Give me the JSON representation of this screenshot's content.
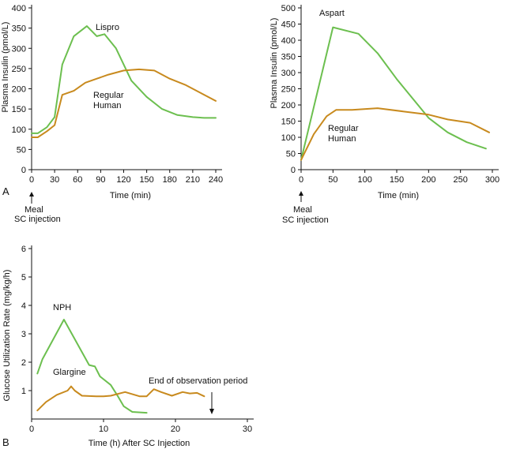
{
  "chart_data": [
    {
      "type": "line",
      "panel": "A-left",
      "title": "",
      "xlabel": "Time (min)",
      "ylabel": "Plasma Insulin (pmol/L)",
      "xlim": [
        0,
        240
      ],
      "ylim": [
        0,
        400
      ],
      "xticks": [
        0,
        30,
        60,
        90,
        120,
        150,
        180,
        210,
        240
      ],
      "yticks": [
        0,
        50,
        100,
        150,
        200,
        250,
        300,
        350,
        400
      ],
      "series": [
        {
          "name": "Lispro",
          "color": "#6cbf4f",
          "x": [
            0,
            8,
            20,
            30,
            40,
            55,
            72,
            85,
            95,
            110,
            130,
            150,
            170,
            190,
            210,
            225,
            240
          ],
          "y": [
            90,
            90,
            105,
            130,
            260,
            330,
            355,
            330,
            335,
            300,
            220,
            180,
            150,
            135,
            130,
            128,
            128
          ]
        },
        {
          "name": "Regular Human",
          "color": "#c88a1e",
          "x": [
            0,
            8,
            20,
            30,
            40,
            55,
            70,
            85,
            100,
            120,
            140,
            160,
            180,
            200,
            220,
            240
          ],
          "y": [
            80,
            80,
            95,
            110,
            185,
            195,
            215,
            225,
            235,
            245,
            248,
            245,
            225,
            210,
            190,
            170
          ]
        }
      ],
      "annotations": [
        "Lispro",
        "Regular",
        "Human",
        "Meal",
        "SC injection",
        "A"
      ]
    },
    {
      "type": "line",
      "panel": "A-right",
      "title": "",
      "xlabel": "Time (min)",
      "ylabel": "Plasma Insulin (pmol/L)",
      "xlim": [
        0,
        300
      ],
      "ylim": [
        0,
        500
      ],
      "xticks": [
        0,
        50,
        100,
        150,
        200,
        250,
        300
      ],
      "yticks": [
        0,
        50,
        100,
        150,
        200,
        250,
        300,
        350,
        400,
        450,
        500
      ],
      "series": [
        {
          "name": "Aspart",
          "color": "#6cbf4f",
          "x": [
            0,
            50,
            90,
            120,
            150,
            200,
            230,
            260,
            290
          ],
          "y": [
            30,
            440,
            420,
            360,
            280,
            160,
            115,
            85,
            65
          ]
        },
        {
          "name": "Regular Human",
          "color": "#c88a1e",
          "x": [
            0,
            20,
            40,
            55,
            80,
            120,
            160,
            200,
            230,
            265,
            295
          ],
          "y": [
            30,
            110,
            165,
            185,
            185,
            190,
            180,
            170,
            155,
            145,
            115
          ]
        }
      ],
      "annotations": [
        "Aspart",
        "Regular",
        "Human",
        "Meal",
        "SC injection"
      ]
    },
    {
      "type": "line",
      "panel": "B",
      "title": "",
      "xlabel": "Time (h) After SC Injection",
      "ylabel": "Glucose Utilization Rate (mg/kg/h)",
      "xlim": [
        0,
        30
      ],
      "ylim": [
        0,
        6
      ],
      "xticks": [
        0,
        10,
        20,
        30
      ],
      "yticks": [
        1,
        2,
        3,
        4,
        5,
        6
      ],
      "series": [
        {
          "name": "NPH",
          "color": "#6cbf4f",
          "x": [
            0.8,
            1.5,
            4.5,
            8,
            8.8,
            9.5,
            11,
            12,
            12.8,
            14,
            16
          ],
          "y": [
            1.6,
            2.1,
            3.5,
            1.9,
            1.85,
            1.5,
            1.2,
            0.8,
            0.45,
            0.25,
            0.22
          ]
        },
        {
          "name": "Glargine",
          "color": "#c88a1e",
          "x": [
            0.8,
            2,
            3.5,
            5,
            5.5,
            6,
            7,
            9,
            10,
            11,
            13,
            15,
            16,
            17,
            18,
            19.5,
            21,
            22,
            23,
            24
          ],
          "y": [
            0.3,
            0.6,
            0.85,
            1.0,
            1.15,
            1.0,
            0.82,
            0.8,
            0.8,
            0.82,
            0.95,
            0.8,
            0.8,
            1.05,
            0.95,
            0.82,
            0.95,
            0.9,
            0.92,
            0.8
          ]
        }
      ],
      "annotations": [
        "NPH",
        "Glargine",
        "End of observation period",
        "B"
      ]
    }
  ],
  "labels": {
    "lispro": "Lispro",
    "regular": "Regular",
    "human": "Human",
    "aspart": "Aspart",
    "meal": "Meal",
    "sc_injection": "SC injection",
    "panel_a": "A",
    "panel_b": "B",
    "nph": "NPH",
    "glargine": "Glargine",
    "end_observation": "End of observation period"
  }
}
